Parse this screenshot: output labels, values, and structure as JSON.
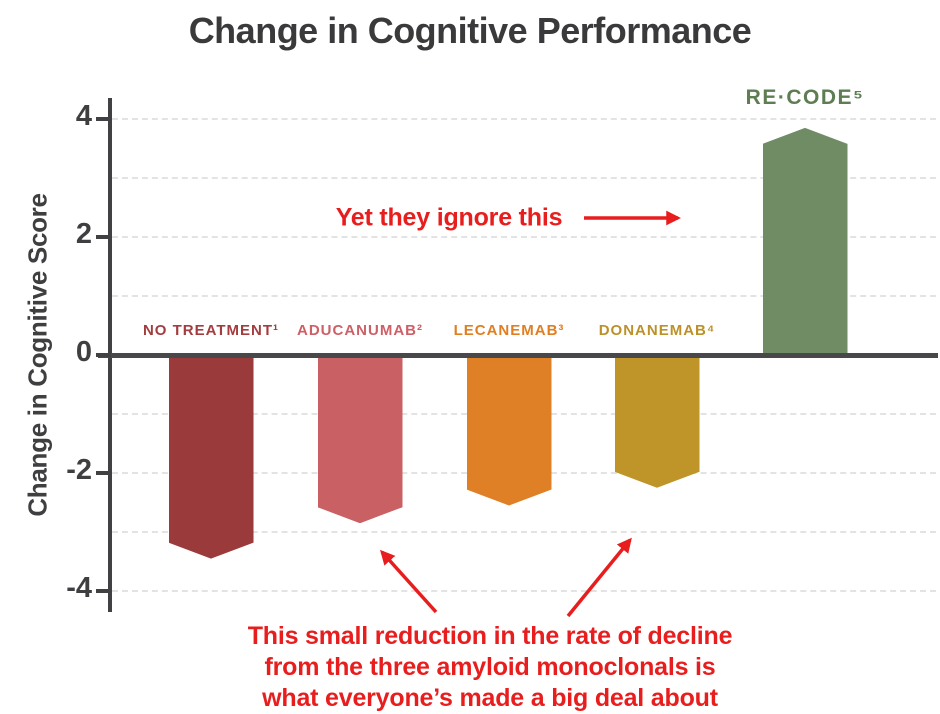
{
  "title": "Change in Cognitive Performance",
  "chart_data": {
    "type": "bar",
    "title": "Change in Cognitive Performance",
    "xlabel": "",
    "ylabel": "Change in Cognitive Score",
    "ylim": [
      -4.6,
      4.6
    ],
    "grid": "horizontal dashed gridlines at every integer from -4 to 4",
    "legend": "none",
    "categories": [
      "NO TREATMENT¹",
      "ADUCANUMAB²",
      "LECANEMAB³",
      "DONANEMAB⁴",
      "RE·CODE⁵"
    ],
    "values": [
      -3.4,
      -2.8,
      -2.5,
      -2.2,
      3.85
    ],
    "bar_colors": [
      "#9a3a3b",
      "#c96063",
      "#df8026",
      "#bf9429",
      "#6f8c64"
    ],
    "label_colors": [
      "#a33c3e",
      "#cd5f66",
      "#e07f22",
      "#bd9129",
      "#5e7d52"
    ],
    "y_ticks": [
      4,
      2,
      0,
      -2,
      -4
    ]
  },
  "axis": {
    "axis_color": "#414144",
    "gridline_color": "#e3e3e3"
  },
  "annotations": {
    "color": "#e81e1e",
    "top_text": "Yet they ignore this",
    "bottom_lines": [
      "This small reduction in the rate of decline",
      "from the three amyloid monoclonals is",
      "what everyone’s made a big deal about"
    ]
  }
}
